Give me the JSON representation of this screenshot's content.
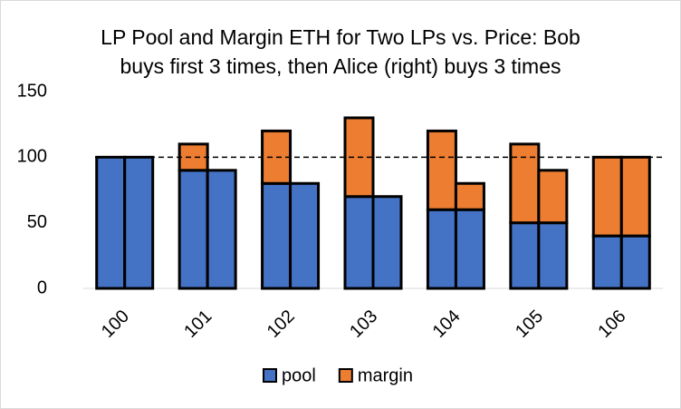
{
  "chart_data": {
    "type": "bar",
    "stacked": true,
    "title": [
      "LP Pool and Margin ETH for Two LPs vs. Price: Bob",
      "buys first 3 times, then Alice (right) buys 3 times"
    ],
    "categories": [
      "100",
      "101",
      "102",
      "103",
      "104",
      "105",
      "106"
    ],
    "series": [
      {
        "name": "pool",
        "color": "#4472c4",
        "values": [
          [
            100,
            100
          ],
          [
            90,
            90
          ],
          [
            80,
            80
          ],
          [
            70,
            70
          ],
          [
            60,
            60
          ],
          [
            50,
            50
          ],
          [
            40,
            40
          ]
        ]
      },
      {
        "name": "margin",
        "color": "#ed7d31",
        "values": [
          [
            0,
            0
          ],
          [
            20,
            0
          ],
          [
            40,
            0
          ],
          [
            60,
            0
          ],
          [
            60,
            20
          ],
          [
            60,
            40
          ],
          [
            60,
            60
          ]
        ]
      }
    ],
    "ylim": [
      0,
      150
    ],
    "yticks": [
      0,
      50,
      100,
      150
    ],
    "reference_line": 100,
    "grid": false,
    "legend": "bottom"
  }
}
